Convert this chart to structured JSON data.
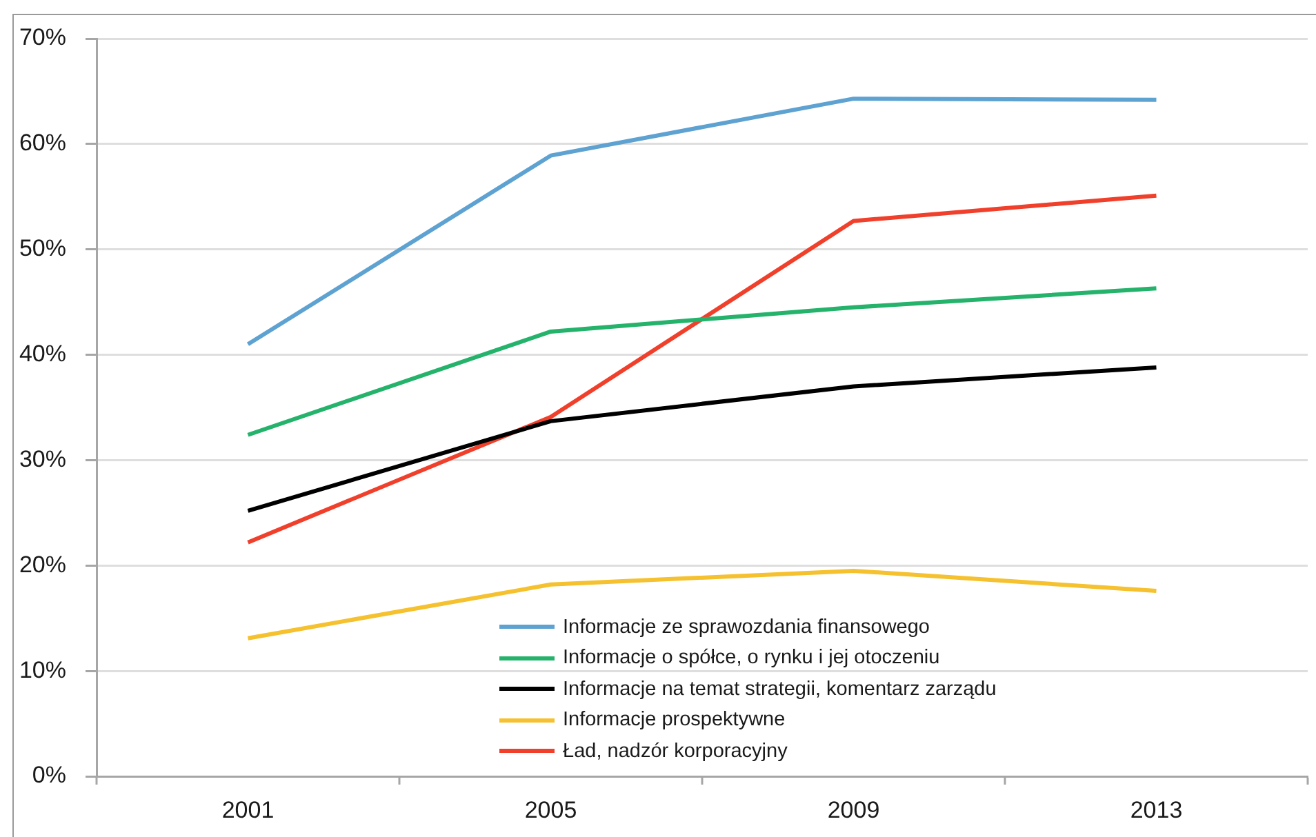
{
  "chart_data": {
    "type": "line",
    "categories": [
      "2001",
      "2005",
      "2009",
      "2013"
    ],
    "series": [
      {
        "name": "Informacje ze sprawozdania finansowego",
        "color": "#5ea2d2",
        "values": [
          41.0,
          58.9,
          64.3,
          64.2
        ]
      },
      {
        "name": "Informacje o spółce, o rynku i jej otoczeniu",
        "color": "#25b36c",
        "values": [
          32.4,
          42.2,
          44.5,
          46.3
        ]
      },
      {
        "name": "Informacje na temat strategii, komentarz zarządu",
        "color": "#000000",
        "values": [
          25.2,
          33.7,
          37.0,
          38.8
        ]
      },
      {
        "name": "Informacje prospektywne",
        "color": "#f5c12e",
        "values": [
          13.1,
          18.2,
          19.5,
          17.6
        ]
      },
      {
        "name": "Ład, nadzór korporacyjny",
        "color": "#f0402c",
        "values": [
          22.2,
          34.1,
          52.7,
          55.1
        ]
      }
    ],
    "ylim": [
      0,
      70
    ],
    "yticks": [
      {
        "value": 0,
        "label": "0%"
      },
      {
        "value": 10,
        "label": "10%"
      },
      {
        "value": 20,
        "label": "20%"
      },
      {
        "value": 30,
        "label": "30%"
      },
      {
        "value": 40,
        "label": "40%"
      },
      {
        "value": 50,
        "label": "50%"
      },
      {
        "value": 60,
        "label": "60%"
      },
      {
        "value": 70,
        "label": "70%"
      }
    ],
    "grid": "y",
    "legend": "bottom",
    "marker": "none",
    "line_style": "solid"
  }
}
